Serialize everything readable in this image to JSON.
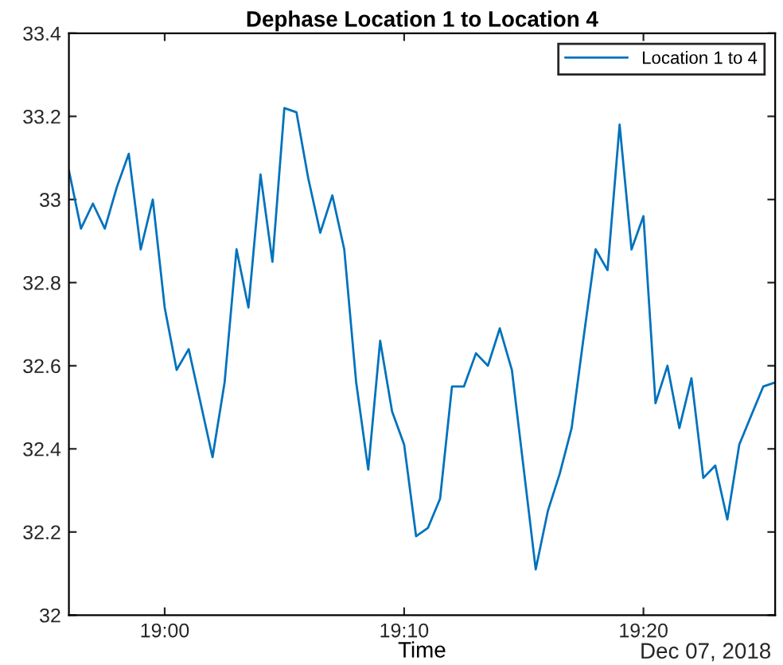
{
  "chart_data": {
    "type": "line",
    "title": "Dephase Location 1 to Location 4",
    "xlabel": "Time",
    "annotations": [
      "Dec 07, 2018"
    ],
    "x": [
      18.9333,
      18.9417,
      18.95,
      18.9583,
      18.9667,
      18.975,
      18.9833,
      18.9917,
      19.0,
      19.0083,
      19.0167,
      19.025,
      19.0333,
      19.0417,
      19.05,
      19.0583,
      19.0667,
      19.075,
      19.0833,
      19.0917,
      19.1,
      19.1083,
      19.1167,
      19.125,
      19.1333,
      19.1417,
      19.15,
      19.1583,
      19.1667,
      19.175,
      19.1833,
      19.1917,
      19.2,
      19.2083,
      19.2167,
      19.225,
      19.2333,
      19.2417,
      19.25,
      19.2583,
      19.2667,
      19.275,
      19.2833,
      19.2917,
      19.3,
      19.3083,
      19.3167,
      19.325,
      19.3333,
      19.3417,
      19.35,
      19.3583,
      19.3667,
      19.375,
      19.3833,
      19.3917,
      19.4,
      19.4083,
      19.4167,
      19.425
    ],
    "series": [
      {
        "name": "Location 1 to 4",
        "color": "#0072bd",
        "values": [
          33.07,
          32.93,
          32.99,
          32.93,
          33.03,
          33.11,
          32.88,
          33.0,
          32.74,
          32.59,
          32.64,
          32.51,
          32.38,
          32.56,
          32.88,
          32.74,
          33.06,
          32.85,
          33.22,
          33.21,
          33.05,
          32.92,
          33.01,
          32.88,
          32.56,
          32.35,
          32.66,
          32.49,
          32.41,
          32.19,
          32.21,
          32.28,
          32.55,
          32.55,
          32.63,
          32.6,
          32.69,
          32.59,
          32.35,
          32.11,
          32.25,
          32.34,
          32.45,
          32.67,
          32.88,
          32.83,
          33.18,
          32.88,
          32.96,
          32.51,
          32.6,
          32.45,
          32.57,
          32.33,
          32.36,
          32.23,
          32.41,
          32.48,
          32.55,
          32.56
        ]
      }
    ],
    "xlim": [
      18.9333,
      19.425
    ],
    "xticks": [
      {
        "value": 19.0,
        "label": "19:00"
      },
      {
        "value": 19.1667,
        "label": "19:10"
      },
      {
        "value": 19.3333,
        "label": "19:20"
      }
    ],
    "ylim": [
      32,
      33.4
    ],
    "yticks": [
      32,
      32.2,
      32.4,
      32.6,
      32.8,
      33,
      33.2,
      33.4
    ],
    "grid": false,
    "legend": "top right",
    "line_style": "solid",
    "marker": "none"
  }
}
